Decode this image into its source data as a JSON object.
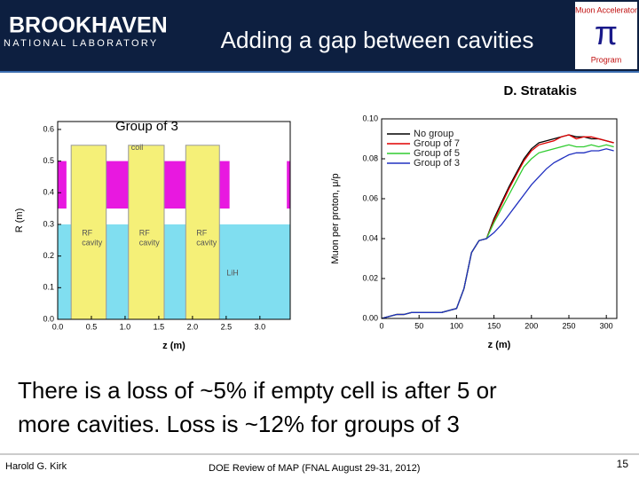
{
  "header": {
    "logo_name": "BROOKHAVEN",
    "logo_sub": "NATIONAL LABORATORY",
    "title": "Adding a gap between cavities",
    "badge_symbol": "π",
    "badge_top": "Muon Accelerator",
    "badge_bottom": "Program"
  },
  "author": "D. Stratakis",
  "charts": [
    {
      "type": "layout",
      "annotation": "Group of 3",
      "xlabel": "z (m)",
      "ylabel": "R (m)",
      "xlim": [
        0,
        3.45
      ],
      "ylim": [
        0,
        0.625
      ],
      "xticks": [
        {
          "value": 0,
          "label": "0.0"
        },
        {
          "value": 0.5,
          "label": "0.5"
        },
        {
          "value": 1,
          "label": "1.0"
        },
        {
          "value": 1.5,
          "label": "1.5"
        },
        {
          "value": 2,
          "label": "2.0"
        },
        {
          "value": 2.5,
          "label": "2.5"
        },
        {
          "value": 3,
          "label": "3.0"
        }
      ],
      "yticks": [
        {
          "value": 0,
          "label": "0.0"
        },
        {
          "value": 0.1,
          "label": "0.1"
        },
        {
          "value": 0.2,
          "label": "0.2"
        },
        {
          "value": 0.3,
          "label": "0.3"
        },
        {
          "value": 0.4,
          "label": "0.4"
        },
        {
          "value": 0.5,
          "label": "0.5"
        },
        {
          "value": 0.6,
          "label": "0.6"
        }
      ],
      "absorber": {
        "label": "LiH",
        "r": [
          0,
          0.3
        ],
        "color": "#80def0"
      },
      "cavities": [
        {
          "label": [
            "RF",
            "cavity"
          ],
          "z": [
            0.2,
            0.72
          ],
          "r": [
            0,
            0.55
          ]
        },
        {
          "label": [
            "RF",
            "cavity"
          ],
          "z": [
            1.05,
            1.58
          ],
          "r": [
            0,
            0.55
          ]
        },
        {
          "label": [
            "RF",
            "cavity"
          ],
          "z": [
            1.9,
            2.4
          ],
          "r": [
            0,
            0.55
          ]
        }
      ],
      "cavity_color": "#f5f078",
      "coil_label": "coil",
      "coil_color": "#e818e0",
      "coils": [
        {
          "z": [
            0.0,
            0.13
          ],
          "r": [
            0.35,
            0.5
          ]
        },
        {
          "z": [
            0.72,
            1.05
          ],
          "r": [
            0.35,
            0.5
          ]
        },
        {
          "z": [
            1.58,
            1.9
          ],
          "r": [
            0.35,
            0.5
          ]
        },
        {
          "z": [
            2.4,
            2.55
          ],
          "r": [
            0.35,
            0.5
          ]
        },
        {
          "z": [
            3.4,
            3.45
          ],
          "r": [
            0.35,
            0.5
          ]
        }
      ]
    },
    {
      "type": "line",
      "xlabel": "z (m)",
      "ylabel": "Muon per proton, μ/p",
      "xlim": [
        0,
        314
      ],
      "ylim": [
        0,
        0.1
      ],
      "xticks": [
        0,
        50,
        100,
        150,
        200,
        250,
        300
      ],
      "yticks": [
        {
          "value": 0,
          "label": "0.00"
        },
        {
          "value": 0.02,
          "label": "0.02"
        },
        {
          "value": 0.04,
          "label": "0.04"
        },
        {
          "value": 0.06,
          "label": "0.06"
        },
        {
          "value": 0.08,
          "label": "0.08"
        },
        {
          "value": 0.1,
          "label": "0.10"
        }
      ],
      "x": [
        0,
        10,
        20,
        30,
        40,
        50,
        60,
        70,
        80,
        90,
        100,
        110,
        120,
        130,
        140,
        150,
        160,
        170,
        180,
        190,
        200,
        210,
        220,
        230,
        240,
        250,
        260,
        270,
        280,
        290,
        300,
        310
      ],
      "series": [
        {
          "name": "No group",
          "color": "#000000",
          "values": [
            0,
            0.001,
            0.002,
            0.002,
            0.003,
            0.003,
            0.003,
            0.003,
            0.003,
            0.004,
            0.005,
            0.015,
            0.033,
            0.039,
            0.04,
            0.05,
            0.058,
            0.066,
            0.073,
            0.08,
            0.085,
            0.088,
            0.089,
            0.09,
            0.091,
            0.092,
            0.091,
            0.091,
            0.09,
            0.09,
            0.089,
            0.088
          ]
        },
        {
          "name": "Group of 7",
          "color": "#e00000",
          "values": [
            0,
            0.001,
            0.002,
            0.002,
            0.003,
            0.003,
            0.003,
            0.003,
            0.003,
            0.004,
            0.005,
            0.015,
            0.033,
            0.039,
            0.04,
            0.049,
            0.057,
            0.065,
            0.072,
            0.079,
            0.084,
            0.087,
            0.088,
            0.089,
            0.091,
            0.092,
            0.09,
            0.091,
            0.091,
            0.09,
            0.089,
            0.088
          ]
        },
        {
          "name": "Group of 5",
          "color": "#30cc30",
          "values": [
            0,
            0.001,
            0.002,
            0.002,
            0.003,
            0.003,
            0.003,
            0.003,
            0.003,
            0.004,
            0.005,
            0.015,
            0.033,
            0.039,
            0.04,
            0.048,
            0.055,
            0.062,
            0.069,
            0.076,
            0.08,
            0.083,
            0.084,
            0.085,
            0.086,
            0.087,
            0.086,
            0.086,
            0.087,
            0.086,
            0.087,
            0.086
          ]
        },
        {
          "name": "Group of 3",
          "color": "#2030c0",
          "values": [
            0,
            0.001,
            0.002,
            0.002,
            0.003,
            0.003,
            0.003,
            0.003,
            0.003,
            0.004,
            0.005,
            0.015,
            0.033,
            0.039,
            0.04,
            0.043,
            0.047,
            0.052,
            0.057,
            0.062,
            0.067,
            0.071,
            0.075,
            0.078,
            0.08,
            0.082,
            0.083,
            0.083,
            0.084,
            0.084,
            0.085,
            0.084
          ]
        }
      ]
    }
  ],
  "body": [
    "There is a loss of ~5% if empty cell is after 5 or",
    "more cavities.  Loss is ~12% for groups of 3"
  ],
  "footer": {
    "presenter": "Harold G. Kirk",
    "event": "DOE Review of MAP (FNAL August 29-31, 2012)",
    "page": 15
  }
}
